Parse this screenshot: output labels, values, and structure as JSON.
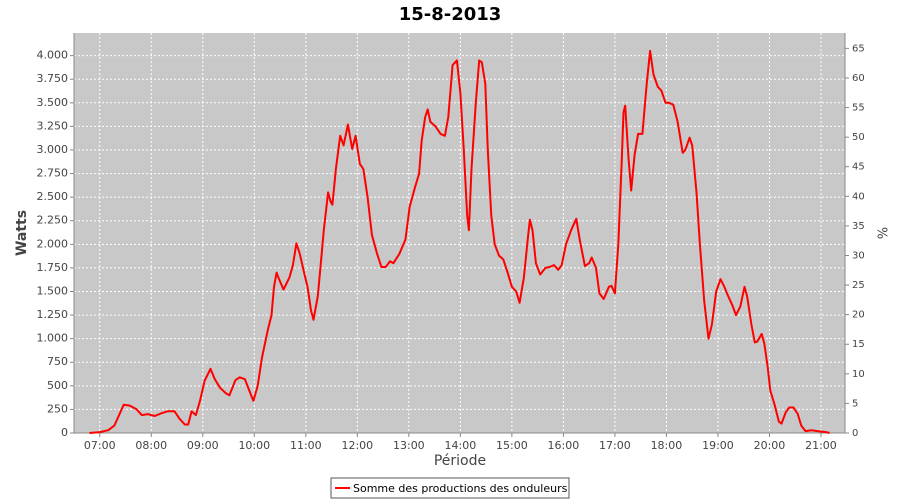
{
  "chart_data": {
    "type": "line",
    "title": "15-8-2013",
    "y_label": "Watts",
    "y2_label": "%",
    "x_label": "Période",
    "x": [
      408,
      420,
      430,
      437,
      443,
      448,
      455,
      463,
      469,
      476,
      484,
      492,
      499,
      507,
      513,
      519,
      523,
      527,
      532,
      537,
      542,
      549,
      554,
      560,
      567,
      571,
      578,
      583,
      589,
      595,
      599,
      604,
      609,
      616,
      620,
      623,
      626,
      628,
      634,
      641,
      645,
      649,
      653,
      658,
      662,
      666,
      669,
      674,
      677,
      681,
      686,
      689,
      691,
      695,
      700,
      704,
      709,
      714,
      718,
      723,
      727,
      732,
      737,
      743,
      748,
      753,
      758,
      762,
      769,
      776,
      781,
      787,
      792,
      795,
      799,
      802,
      805,
      811,
      817,
      822,
      826,
      831,
      836,
      840,
      844,
      848,
      850,
      853,
      858,
      862,
      865,
      869,
      872,
      876,
      880,
      885,
      890,
      895,
      900,
      905,
      909,
      914,
      919,
      921,
      924,
      928,
      933,
      939,
      944,
      949,
      954,
      958,
      963,
      969,
      975,
      979,
      985,
      990,
      993,
      998,
      1002,
      1007,
      1013,
      1016,
      1020,
      1024,
      1028,
      1030,
      1032,
      1036,
      1039,
      1043,
      1047,
      1052,
      1057,
      1061,
      1065,
      1070,
      1074,
      1079,
      1083,
      1088,
      1093,
      1099,
      1102,
      1107,
      1110,
      1115,
      1119,
      1124,
      1129,
      1133,
      1138,
      1143,
      1147,
      1152,
      1157,
      1161,
      1166,
      1171,
      1174,
      1179,
      1183,
      1186,
      1191,
      1194,
      1198,
      1201,
      1206,
      1211,
      1214,
      1219,
      1223,
      1228,
      1233,
      1237,
      1242,
      1249,
      1256,
      1266,
      1270
    ],
    "series": [
      {
        "name": "Somme des productions des onduleurs",
        "color": "#ff0000",
        "values": [
          0,
          10,
          30,
          80,
          200,
          300,
          290,
          250,
          190,
          200,
          180,
          210,
          230,
          230,
          150,
          90,
          90,
          230,
          190,
          350,
          550,
          680,
          570,
          480,
          420,
          400,
          560,
          590,
          570,
          430,
          340,
          500,
          800,
          1100,
          1250,
          1550,
          1700,
          1650,
          1520,
          1650,
          1780,
          2010,
          1900,
          1700,
          1550,
          1300,
          1200,
          1450,
          1750,
          2150,
          2550,
          2450,
          2420,
          2800,
          3150,
          3050,
          3270,
          3010,
          3150,
          2850,
          2800,
          2500,
          2100,
          1900,
          1760,
          1760,
          1820,
          1800,
          1900,
          2050,
          2400,
          2600,
          2750,
          3100,
          3350,
          3430,
          3300,
          3250,
          3170,
          3150,
          3350,
          3900,
          3950,
          3600,
          3000,
          2300,
          2150,
          2800,
          3500,
          3950,
          3930,
          3700,
          3000,
          2300,
          2000,
          1880,
          1840,
          1700,
          1550,
          1500,
          1380,
          1650,
          2100,
          2260,
          2150,
          1800,
          1680,
          1750,
          1760,
          1780,
          1730,
          1780,
          2000,
          2150,
          2270,
          2050,
          1770,
          1800,
          1860,
          1750,
          1480,
          1420,
          1550,
          1560,
          1480,
          2000,
          2900,
          3400,
          3470,
          2900,
          2570,
          2950,
          3170,
          3170,
          3700,
          4050,
          3800,
          3670,
          3630,
          3500,
          3500,
          3480,
          3300,
          2970,
          3000,
          3130,
          3050,
          2550,
          2000,
          1400,
          1000,
          1150,
          1500,
          1630,
          1560,
          1450,
          1350,
          1250,
          1340,
          1550,
          1450,
          1150,
          960,
          970,
          1050,
          950,
          700,
          450,
          300,
          120,
          100,
          220,
          270,
          270,
          200,
          80,
          20,
          30,
          20,
          10,
          0
        ]
      }
    ],
    "xlim": [
      390,
      1288
    ],
    "xticks": [
      {
        "value": 420,
        "label": "07:00"
      },
      {
        "value": 480,
        "label": "08:00"
      },
      {
        "value": 540,
        "label": "09:00"
      },
      {
        "value": 600,
        "label": "10:00"
      },
      {
        "value": 660,
        "label": "11:00"
      },
      {
        "value": 720,
        "label": "12:00"
      },
      {
        "value": 780,
        "label": "13:00"
      },
      {
        "value": 840,
        "label": "14:00"
      },
      {
        "value": 900,
        "label": "15:00"
      },
      {
        "value": 960,
        "label": "16:00"
      },
      {
        "value": 1020,
        "label": "17:00"
      },
      {
        "value": 1080,
        "label": "18:00"
      },
      {
        "value": 1140,
        "label": "19:00"
      },
      {
        "value": 1200,
        "label": "20:00"
      },
      {
        "value": 1260,
        "label": "21:00"
      }
    ],
    "ylim": [
      0,
      4240
    ],
    "yticks": [
      0,
      250,
      500,
      750,
      {
        "value": 1000,
        "label": "1.000"
      },
      {
        "value": 1250,
        "label": "1.250"
      },
      {
        "value": 1500,
        "label": "1.500"
      },
      {
        "value": 1750,
        "label": "1.750"
      },
      {
        "value": 2000,
        "label": "2.000"
      },
      {
        "value": 2250,
        "label": "2.250"
      },
      {
        "value": 2500,
        "label": "2.500"
      },
      {
        "value": 2750,
        "label": "2.750"
      },
      {
        "value": 3000,
        "label": "3.000"
      },
      {
        "value": 3250,
        "label": "3.250"
      },
      {
        "value": 3500,
        "label": "3.500"
      },
      {
        "value": 3750,
        "label": "3.750"
      },
      {
        "value": 4000,
        "label": "4.000"
      }
    ],
    "y2lim": [
      0,
      67.6
    ],
    "y2ticks": [
      0,
      5,
      10,
      15,
      20,
      25,
      30,
      35,
      40,
      45,
      50,
      55,
      60,
      65
    ],
    "grid": true,
    "legend": "bottom"
  }
}
